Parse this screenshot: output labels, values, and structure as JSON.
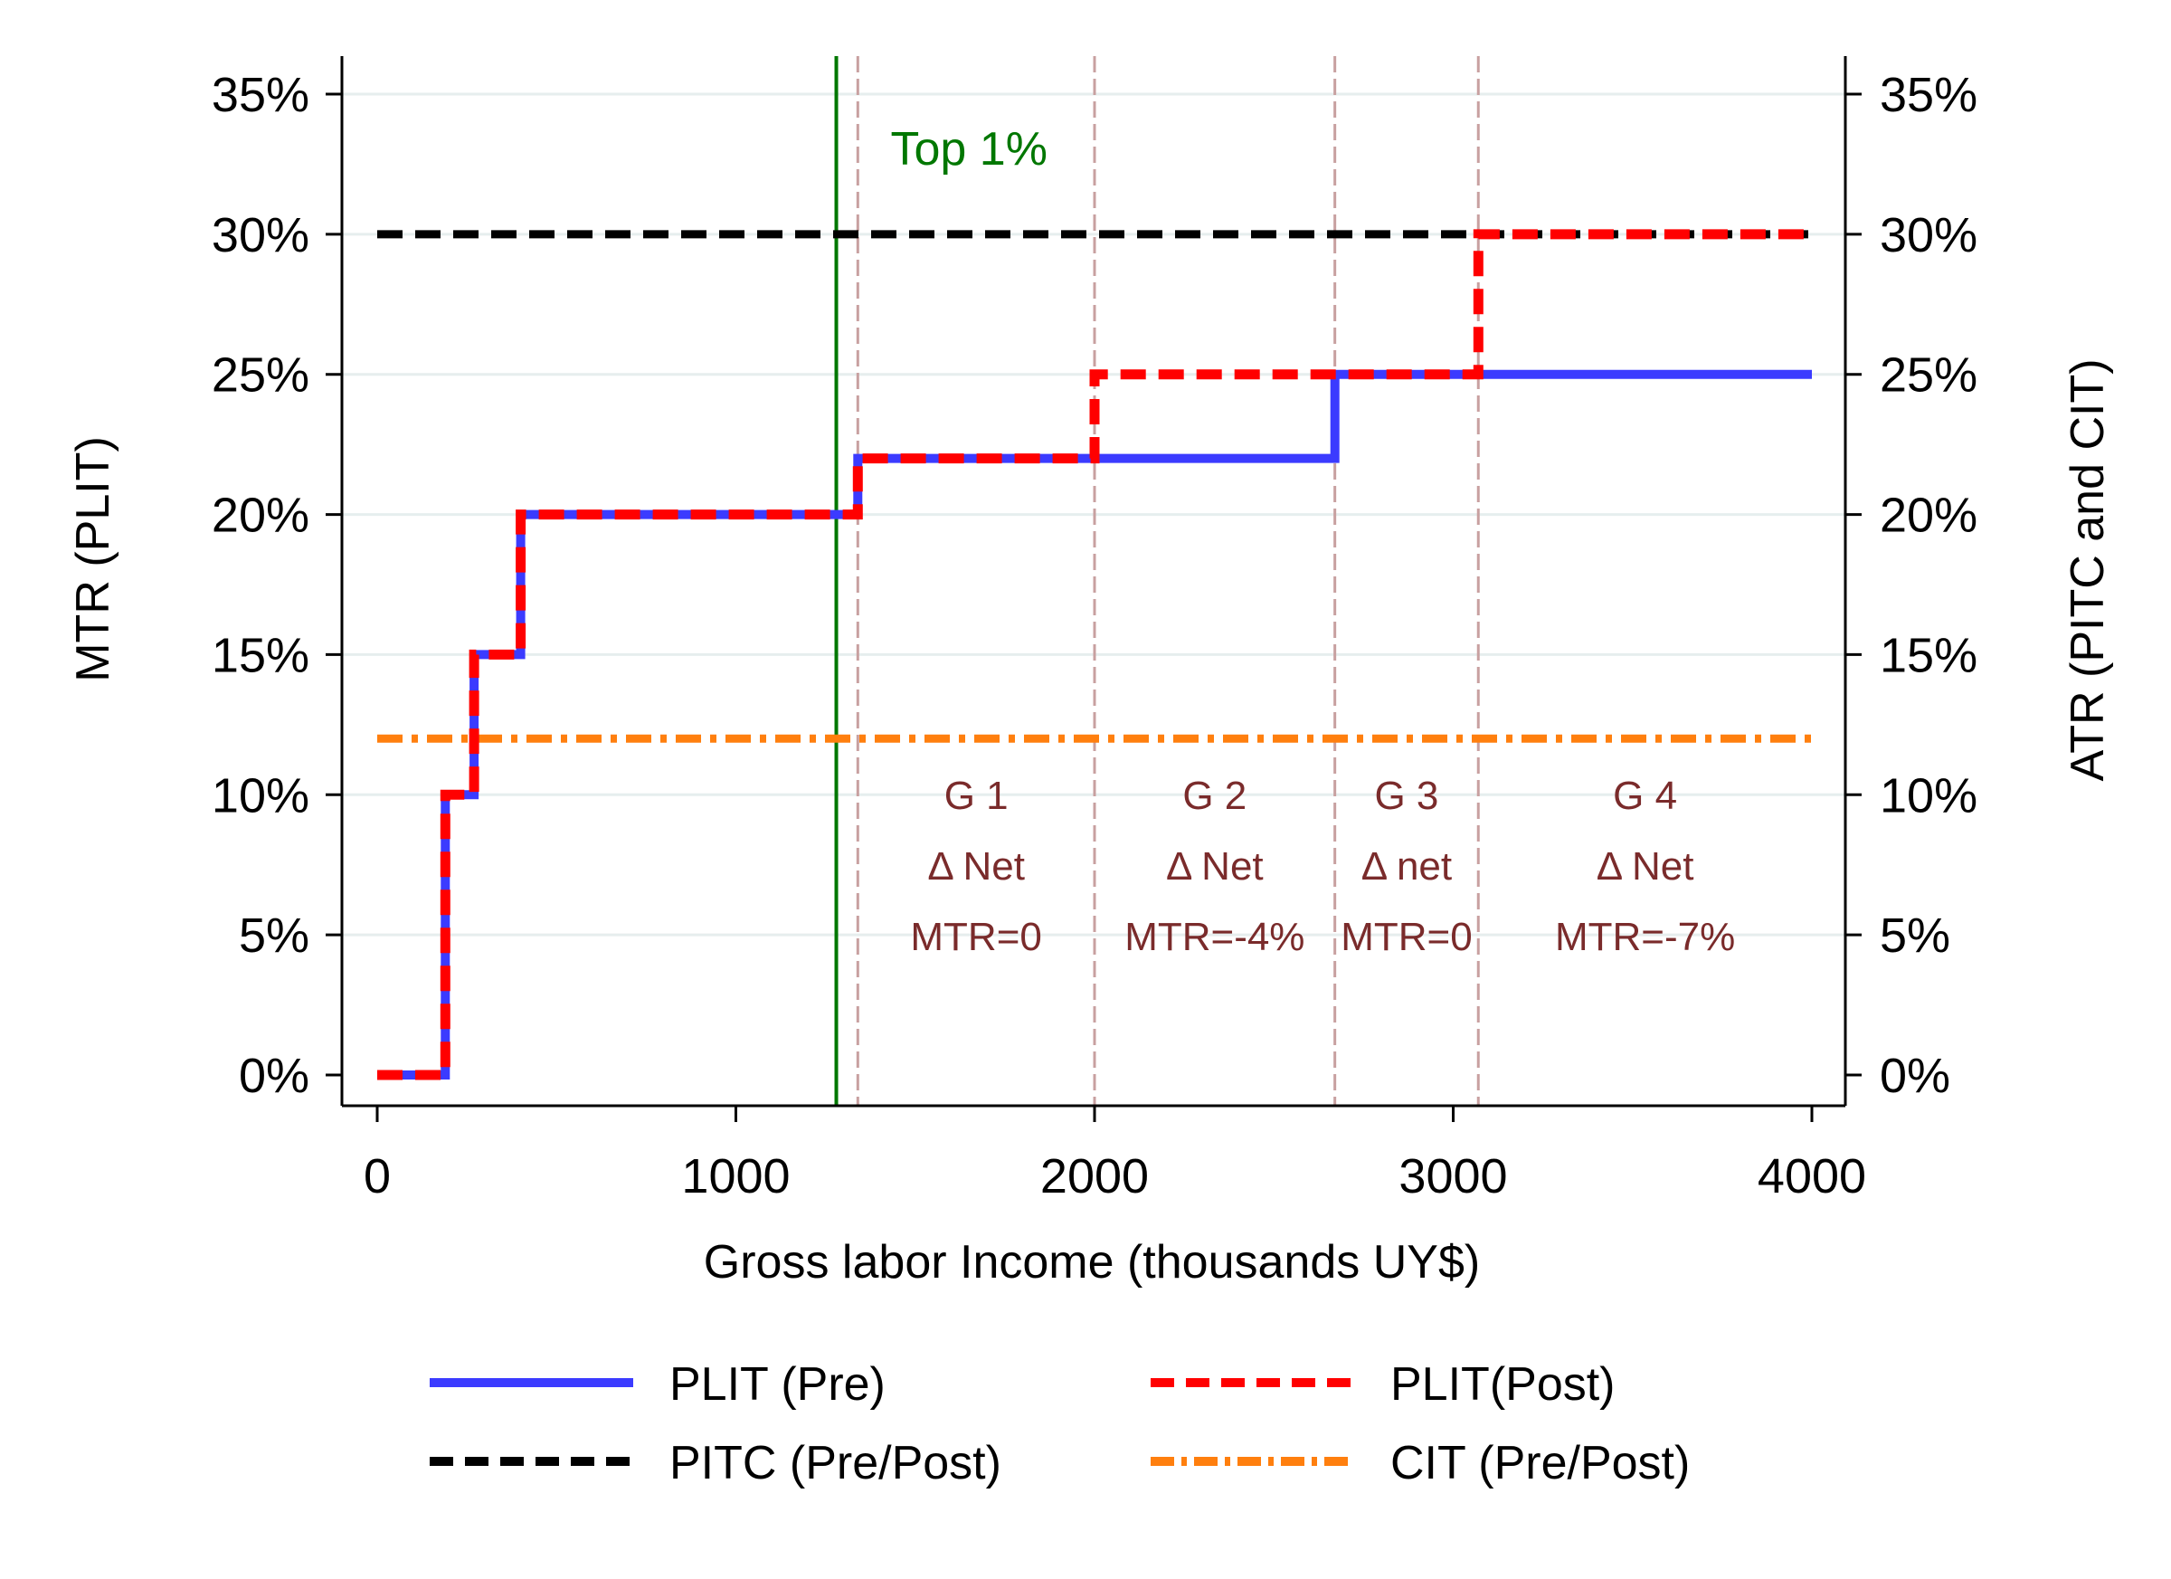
{
  "chart_data": {
    "type": "line",
    "xlabel": "Gross labor Income (thousands UY$)",
    "ylabel_left": "MTR (PLIT)",
    "ylabel_right": "ATR (PITC and CIT)",
    "xlim": [
      0,
      4000
    ],
    "ylim": [
      0,
      35
    ],
    "x_ticks": [
      0,
      1000,
      2000,
      3000,
      4000
    ],
    "x_tick_labels": [
      "0",
      "1000",
      "2000",
      "3000",
      "4000"
    ],
    "y_ticks": [
      0,
      5,
      10,
      15,
      20,
      25,
      30,
      35
    ],
    "y_tick_labels": [
      "0%",
      "5%",
      "10%",
      "15%",
      "20%",
      "25%",
      "30%",
      "35%"
    ],
    "grid": "horizontal",
    "legend_position": "bottom",
    "series": [
      {
        "name": "PLIT (Pre)",
        "color": "#3b3bff",
        "style": "solid",
        "x": [
          0,
          190,
          190,
          270,
          270,
          400,
          400,
          1340,
          1340,
          2670,
          2670,
          4000
        ],
        "y": [
          0,
          0,
          10,
          10,
          15,
          15,
          20,
          20,
          22,
          22,
          25,
          25
        ]
      },
      {
        "name": "PLIT(Post)",
        "color": "#ff0000",
        "style": "dash",
        "x": [
          0,
          190,
          190,
          270,
          270,
          400,
          400,
          1340,
          1340,
          2000,
          2000,
          3070,
          3070,
          4000
        ],
        "y": [
          0,
          0,
          10,
          10,
          15,
          15,
          20,
          20,
          22,
          22,
          25,
          25,
          30,
          30
        ]
      },
      {
        "name": "PITC (Pre/Post)",
        "color": "#000000",
        "style": "dash",
        "x": [
          0,
          4000
        ],
        "y": [
          30,
          30
        ]
      },
      {
        "name": "CIT (Pre/Post)",
        "color": "#ff7f0e",
        "style": "dashdot",
        "x": [
          0,
          4000
        ],
        "y": [
          12,
          12
        ]
      }
    ],
    "reference_lines": [
      {
        "label": "Top 1%",
        "x": 1280,
        "color": "#007700"
      }
    ],
    "group_boundaries": [
      1340,
      2000,
      2670,
      3070
    ],
    "group_boundary_color": "#c8a0a0",
    "groups": [
      {
        "name": "G 1",
        "delta": "Δ Net",
        "mtr": "MTR=0",
        "x_center": 1670
      },
      {
        "name": "G 2",
        "delta": "Δ Net",
        "mtr": "MTR=-4%",
        "x_center": 2335
      },
      {
        "name": "G 3",
        "delta": "Δ net",
        "mtr": "MTR=0",
        "x_center": 2870
      },
      {
        "name": "G 4",
        "delta": "Δ Net",
        "mtr": "MTR=-7%",
        "x_center": 3535
      }
    ],
    "group_label_color": "#7a2b2b"
  }
}
